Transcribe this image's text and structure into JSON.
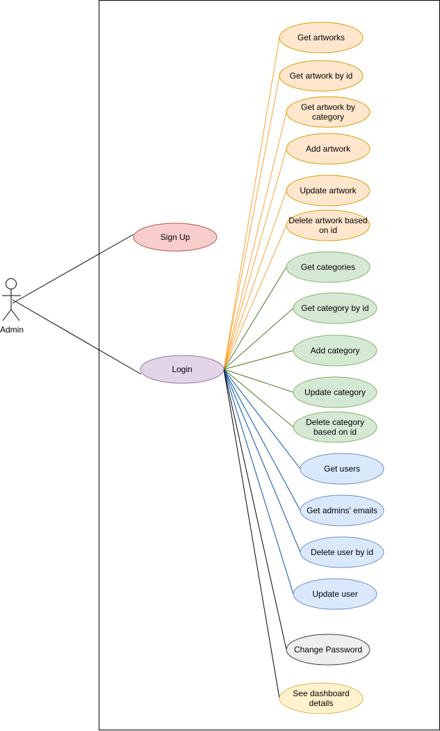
{
  "actor": {
    "label": "Admin"
  },
  "use_cases": {
    "sign_up": "Sign Up",
    "login": "Login",
    "get_artworks": "Get artworks",
    "get_artwork_by_id": "Get artwork by id",
    "get_artwork_by_category": [
      "Get artwork by",
      "category"
    ],
    "add_artwork": "Add artwork",
    "update_artwork": "Update artwork",
    "delete_artwork": [
      "Delete artwork based",
      "on id"
    ],
    "get_categories": "Get categories",
    "get_category_by_id": "Get category by id",
    "add_category": "Add category",
    "update_category": "Update category",
    "delete_category": [
      "Delete category",
      "based on id"
    ],
    "get_users": "Get users",
    "get_admins_emails": "Get admins' emails",
    "delete_user_by_id": "Delete user by id",
    "update_user": "Update user",
    "change_password": "Change Password",
    "see_dashboard": [
      "See dashboard",
      "details"
    ]
  },
  "colors": {
    "signup": {
      "fill": "#f8cecc",
      "stroke": "#b85450"
    },
    "login": {
      "fill": "#e1d5e7",
      "stroke": "#9673a6"
    },
    "artwork": {
      "fill": "#ffe6cc",
      "stroke": "#d79b00",
      "line": "#ff9f2e"
    },
    "category": {
      "fill": "#d5e8d4",
      "stroke": "#82b366",
      "line": "#4d7a1e"
    },
    "user": {
      "fill": "#dae8fc",
      "stroke": "#6c8ebf",
      "line": "#0050b3"
    },
    "password": {
      "fill": "#eeeeee",
      "stroke": "#36393d",
      "line": "#000000"
    },
    "dashboard": {
      "fill": "#fff2cc",
      "stroke": "#d6b656",
      "line": "#000000"
    }
  }
}
